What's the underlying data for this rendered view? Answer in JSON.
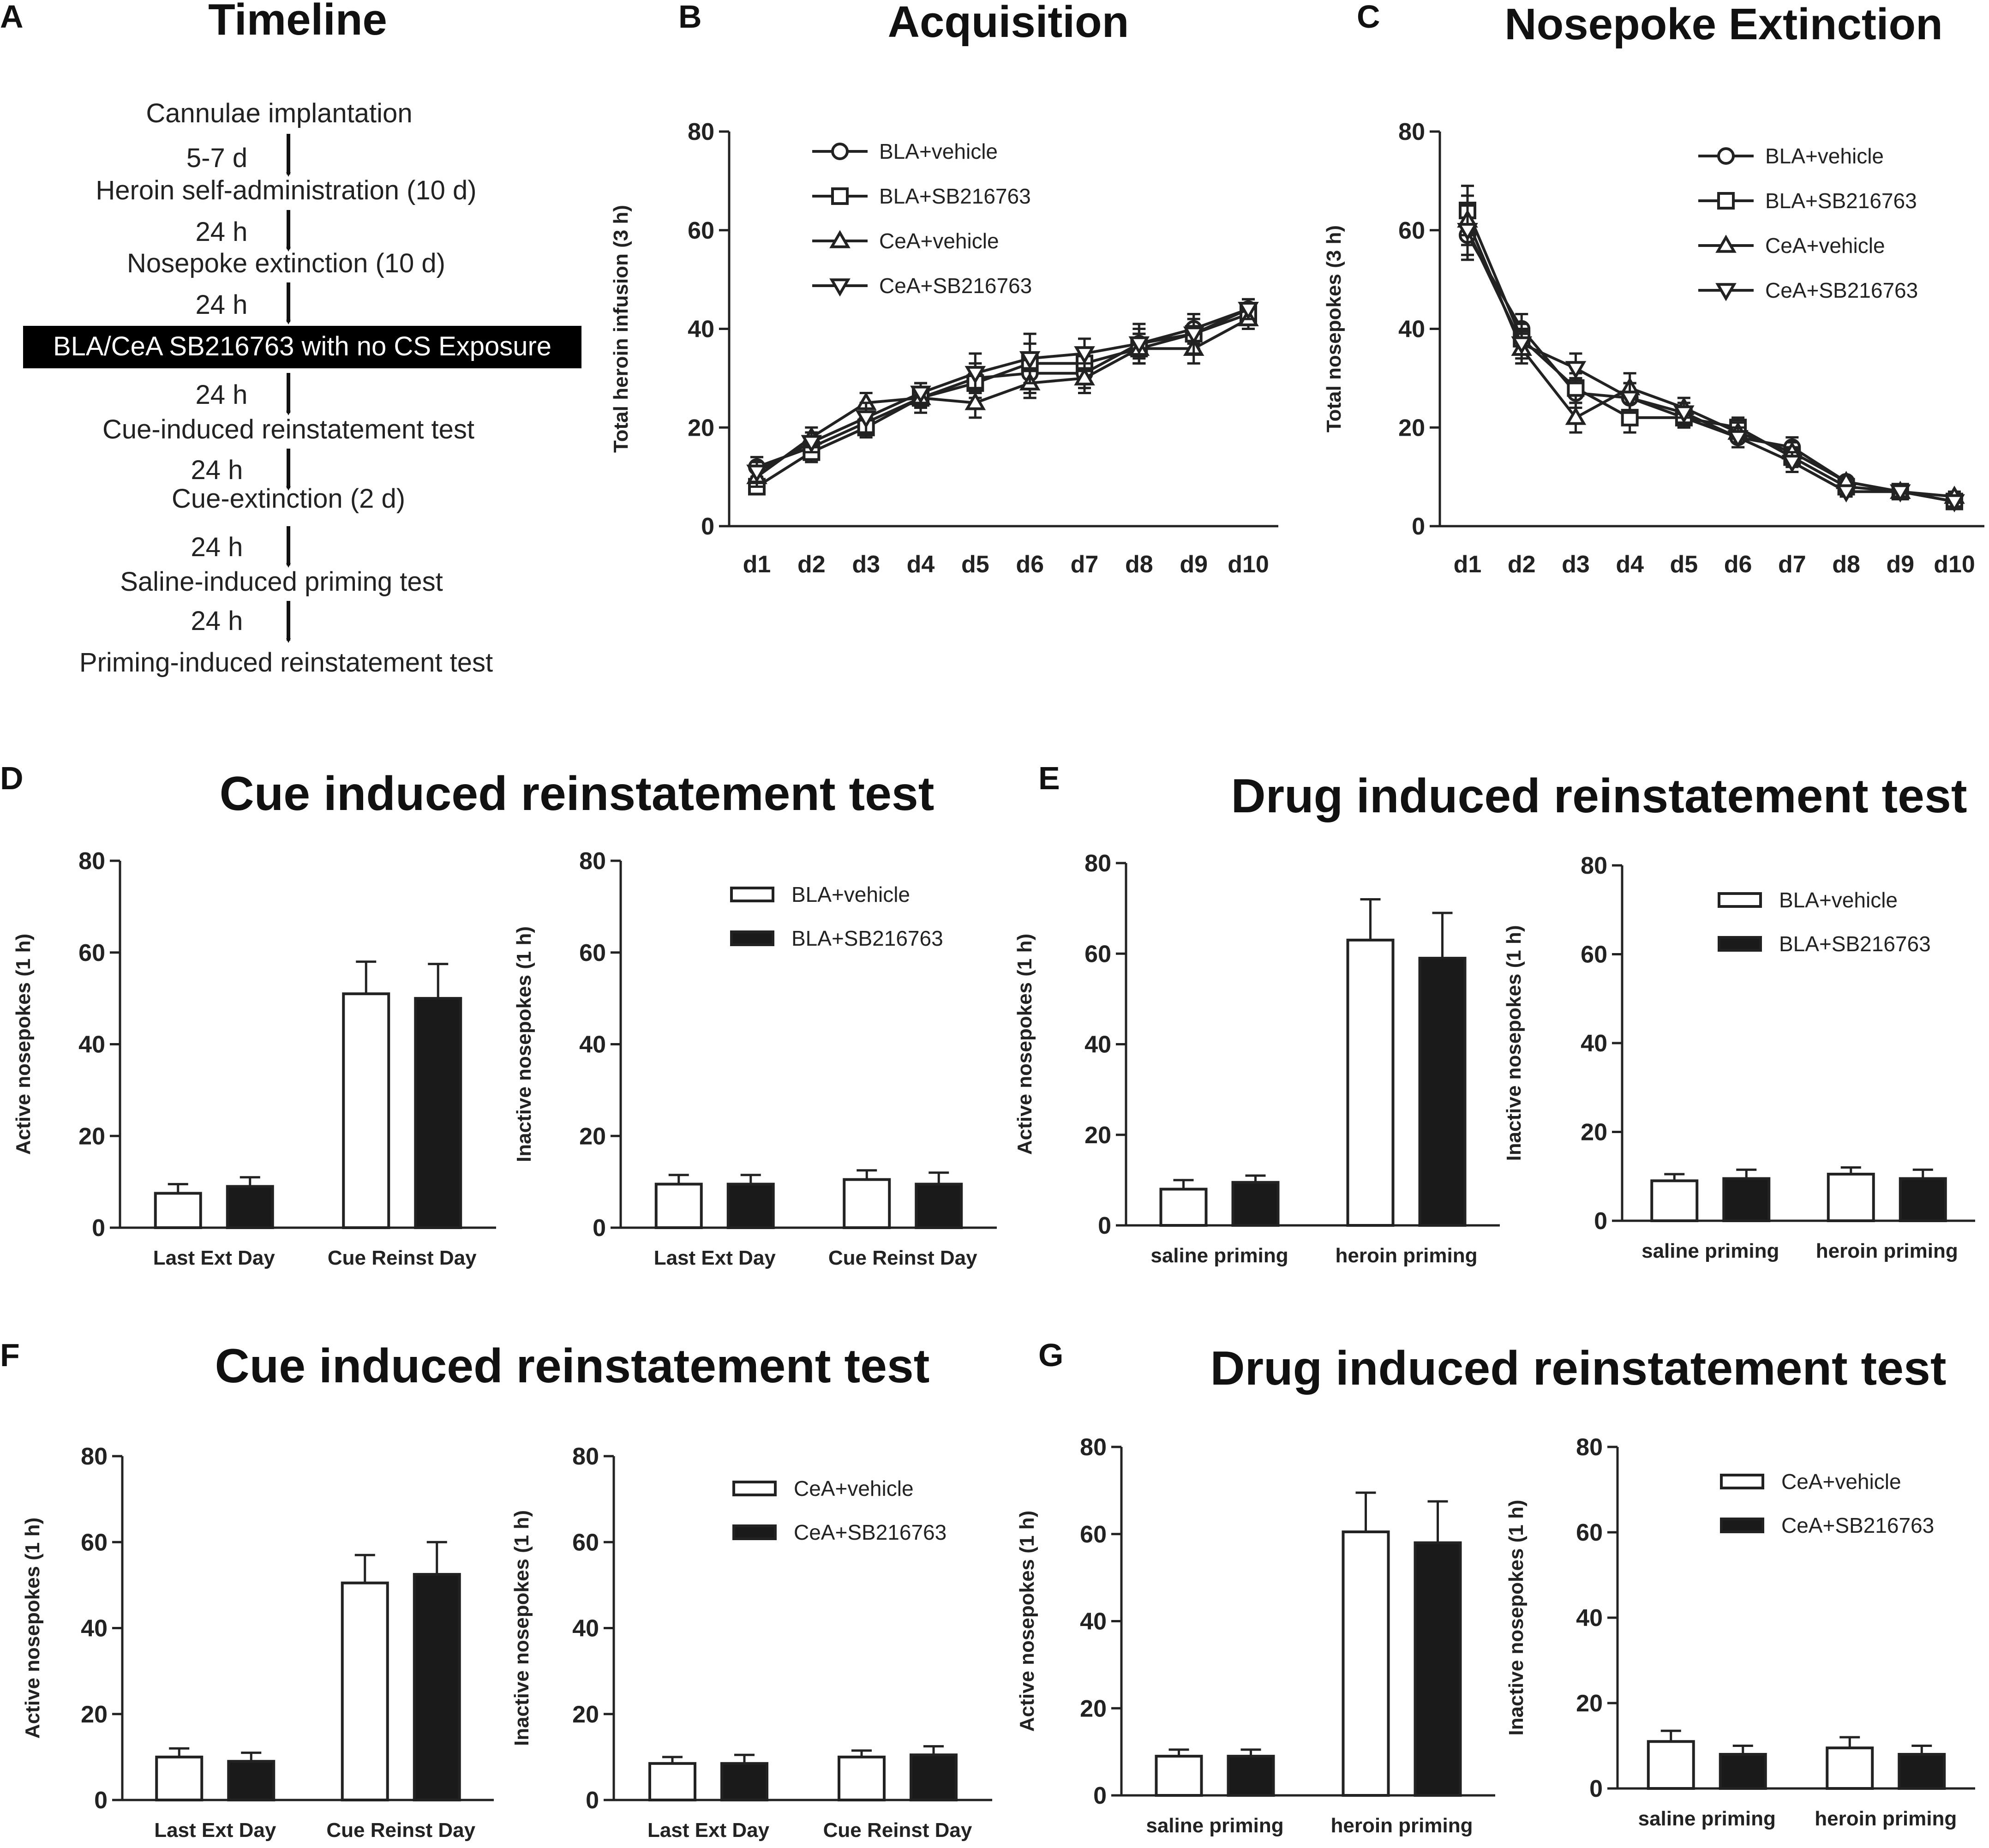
{
  "colors": {
    "ink": "#222222",
    "filled_bar": "#1a1a1a",
    "open_bar": "#ffffff",
    "highlight_bg": "#000000"
  },
  "panels": {
    "A": {
      "letter": "A",
      "title": "Timeline"
    },
    "B": {
      "letter": "B",
      "title": "Acquisition"
    },
    "C": {
      "letter": "C",
      "title": "Nosepoke Extinction"
    },
    "D": {
      "letter": "D",
      "title": "Cue induced reinstatement test"
    },
    "E": {
      "letter": "E",
      "title": "Drug induced reinstatement test"
    },
    "F": {
      "letter": "F",
      "title": "Cue induced reinstatement test"
    },
    "G": {
      "letter": "G",
      "title": "Drug induced reinstatement test"
    }
  },
  "timeline": {
    "steps": [
      "Cannulae implantation",
      "Heroin self-administration (10 d)",
      "Nosepoke extinction (10 d)",
      "BLA/CeA SB216763 with no CS Exposure",
      "Cue-induced reinstatement test",
      "Cue-extinction (2 d)",
      "Saline-induced priming test",
      "Priming-induced reinstatement test"
    ],
    "intervals": [
      "5-7 d",
      "24 h",
      "24 h",
      "24 h",
      "24 h",
      "24 h",
      "24 h"
    ],
    "highlighted_step": 3
  },
  "chart_data": [
    {
      "id": "B",
      "type": "line",
      "title": "Acquisition",
      "xlabel": "",
      "ylabel": "Total heroin infusion (3 h)",
      "categories": [
        "d1",
        "d2",
        "d3",
        "d4",
        "d5",
        "d6",
        "d7",
        "d8",
        "d9",
        "d10"
      ],
      "ylim": [
        0,
        80
      ],
      "yticks": [
        0,
        20,
        40,
        60,
        80
      ],
      "legend_position": "top-left",
      "series": [
        {
          "name": "BLA+vehicle",
          "marker": "circle",
          "values": [
            12,
            16,
            21,
            26,
            30,
            31,
            31,
            37,
            40,
            44
          ],
          "errors": [
            2,
            2,
            2,
            2,
            3,
            4,
            3,
            3,
            3,
            2
          ]
        },
        {
          "name": "BLA+SB216763",
          "marker": "square",
          "values": [
            8,
            15,
            20,
            26,
            29,
            33,
            33,
            36,
            39,
            43
          ],
          "errors": [
            1,
            2,
            2,
            2,
            3,
            4,
            3,
            3,
            3,
            2
          ]
        },
        {
          "name": "CeA+vehicle",
          "marker": "triangle-up",
          "values": [
            10,
            18,
            25,
            26,
            25,
            29,
            30,
            36,
            36,
            42
          ],
          "errors": [
            2,
            2,
            2,
            3,
            3,
            3,
            3,
            3,
            3,
            2
          ]
        },
        {
          "name": "CeA+SB216763",
          "marker": "triangle-down",
          "values": [
            11,
            17,
            22,
            27,
            31,
            34,
            35,
            37,
            39,
            44
          ],
          "errors": [
            2,
            2,
            3,
            2,
            4,
            5,
            3,
            4,
            4,
            2
          ]
        }
      ]
    },
    {
      "id": "C",
      "type": "line",
      "title": "Nosepoke Extinction",
      "xlabel": "",
      "ylabel": "Total nosepokes (3 h)",
      "categories": [
        "d1",
        "d2",
        "d3",
        "d4",
        "d5",
        "d6",
        "d7",
        "d8",
        "d9",
        "d10"
      ],
      "ylim": [
        0,
        80
      ],
      "yticks": [
        0,
        20,
        40,
        60,
        80
      ],
      "legend_position": "top-right",
      "series": [
        {
          "name": "BLA+vehicle",
          "marker": "circle",
          "values": [
            59,
            40,
            27,
            26,
            22,
            18,
            16,
            9,
            7,
            5
          ],
          "errors": [
            5,
            3,
            3,
            3,
            2,
            2,
            2,
            1,
            1,
            1
          ]
        },
        {
          "name": "BLA+SB216763",
          "marker": "square",
          "values": [
            64,
            38,
            28,
            22,
            22,
            20,
            14,
            8,
            7,
            5
          ],
          "errors": [
            5,
            3,
            3,
            3,
            2,
            2,
            2,
            1,
            1,
            1
          ]
        },
        {
          "name": "CeA+vehicle",
          "marker": "triangle-up",
          "values": [
            62,
            36,
            22,
            28,
            24,
            19,
            15,
            9,
            7,
            6
          ],
          "errors": [
            5,
            3,
            3,
            3,
            2,
            2,
            2,
            1,
            1,
            1
          ]
        },
        {
          "name": "CeA+SB216763",
          "marker": "triangle-down",
          "values": [
            60,
            37,
            32,
            26,
            23,
            18,
            13,
            7,
            7,
            5
          ],
          "errors": [
            5,
            3,
            3,
            3,
            2,
            2,
            2,
            1,
            1,
            1
          ]
        }
      ]
    },
    {
      "id": "D-active",
      "type": "bar",
      "ylabel": "Active nosepokes (1 h)",
      "categories": [
        "Last Ext Day",
        "Cue Reinst Day"
      ],
      "ylim": [
        0,
        80
      ],
      "yticks": [
        0,
        20,
        40,
        60,
        80
      ],
      "series": [
        {
          "name": "BLA+vehicle",
          "style": "open",
          "values": [
            7.5,
            51
          ],
          "errors": [
            2,
            7
          ]
        },
        {
          "name": "BLA+SB216763",
          "style": "filled",
          "values": [
            9,
            50
          ],
          "errors": [
            2,
            7.5
          ]
        }
      ]
    },
    {
      "id": "D-inactive",
      "type": "bar",
      "ylabel": "Inactive nosepokes (1 h)",
      "categories": [
        "Last Ext Day",
        "Cue Reinst Day"
      ],
      "ylim": [
        0,
        80
      ],
      "yticks": [
        0,
        20,
        40,
        60,
        80
      ],
      "legend_position": "top-right",
      "series": [
        {
          "name": "BLA+vehicle",
          "style": "open",
          "values": [
            9.5,
            10.5
          ],
          "errors": [
            2,
            2
          ]
        },
        {
          "name": "BLA+SB216763",
          "style": "filled",
          "values": [
            9.5,
            9.5
          ],
          "errors": [
            2,
            2.5
          ]
        }
      ]
    },
    {
      "id": "E-active",
      "type": "bar",
      "ylabel": "Active nosepokes (1 h)",
      "categories": [
        "saline priming",
        "heroin priming"
      ],
      "ylim": [
        0,
        80
      ],
      "yticks": [
        0,
        20,
        40,
        60,
        80
      ],
      "series": [
        {
          "name": "BLA+vehicle",
          "style": "open",
          "values": [
            8,
            63
          ],
          "errors": [
            2,
            9
          ]
        },
        {
          "name": "BLA+SB216763",
          "style": "filled",
          "values": [
            9.5,
            59
          ],
          "errors": [
            1.5,
            10
          ]
        }
      ]
    },
    {
      "id": "E-inactive",
      "type": "bar",
      "ylabel": "Inactive nosepokes (1 h)",
      "categories": [
        "saline priming",
        "heroin priming"
      ],
      "ylim": [
        0,
        80
      ],
      "yticks": [
        0,
        20,
        40,
        60,
        80
      ],
      "legend_position": "top-right",
      "series": [
        {
          "name": "BLA+vehicle",
          "style": "open",
          "values": [
            9,
            10.5
          ],
          "errors": [
            1.5,
            1.5
          ]
        },
        {
          "name": "BLA+SB216763",
          "style": "filled",
          "values": [
            9.5,
            9.5
          ],
          "errors": [
            2,
            2
          ]
        }
      ]
    },
    {
      "id": "F-active",
      "type": "bar",
      "ylabel": "Active nosepokes (1 h)",
      "categories": [
        "Last Ext Day",
        "Cue Reinst Day"
      ],
      "ylim": [
        0,
        80
      ],
      "yticks": [
        0,
        20,
        40,
        60,
        80
      ],
      "series": [
        {
          "name": "CeA+vehicle",
          "style": "open",
          "values": [
            10,
            50.5
          ],
          "errors": [
            2,
            6.5
          ]
        },
        {
          "name": "CeA+SB216763",
          "style": "filled",
          "values": [
            9,
            52.5
          ],
          "errors": [
            2,
            7.5
          ]
        }
      ]
    },
    {
      "id": "F-inactive",
      "type": "bar",
      "ylabel": "Inactive nosepokes (1 h)",
      "categories": [
        "Last Ext Day",
        "Cue Reinst Day"
      ],
      "ylim": [
        0,
        80
      ],
      "yticks": [
        0,
        20,
        40,
        60,
        80
      ],
      "legend_position": "top-right",
      "series": [
        {
          "name": "CeA+vehicle",
          "style": "open",
          "values": [
            8.5,
            10
          ],
          "errors": [
            1.5,
            1.5
          ]
        },
        {
          "name": "CeA+SB216763",
          "style": "filled",
          "values": [
            8.5,
            10.5
          ],
          "errors": [
            2,
            2
          ]
        }
      ]
    },
    {
      "id": "G-active",
      "type": "bar",
      "ylabel": "Active nosepokes (1 h)",
      "categories": [
        "saline priming",
        "heroin priming"
      ],
      "ylim": [
        0,
        80
      ],
      "yticks": [
        0,
        20,
        40,
        60,
        80
      ],
      "series": [
        {
          "name": "CeA+vehicle",
          "style": "open",
          "values": [
            9,
            60.5
          ],
          "errors": [
            1.5,
            9
          ]
        },
        {
          "name": "CeA+SB216763",
          "style": "filled",
          "values": [
            9,
            58
          ],
          "errors": [
            1.5,
            9.5
          ]
        }
      ]
    },
    {
      "id": "G-inactive",
      "type": "bar",
      "ylabel": "Inactive nosepokes (1 h)",
      "categories": [
        "saline priming",
        "heroin priming"
      ],
      "ylim": [
        0,
        80
      ],
      "yticks": [
        0,
        20,
        40,
        60,
        80
      ],
      "legend_position": "top-right",
      "series": [
        {
          "name": "CeA+vehicle",
          "style": "open",
          "values": [
            11,
            9.5
          ],
          "errors": [
            2.5,
            2.5
          ]
        },
        {
          "name": "CeA+SB216763",
          "style": "filled",
          "values": [
            8,
            8
          ],
          "errors": [
            2,
            2
          ]
        }
      ]
    }
  ]
}
